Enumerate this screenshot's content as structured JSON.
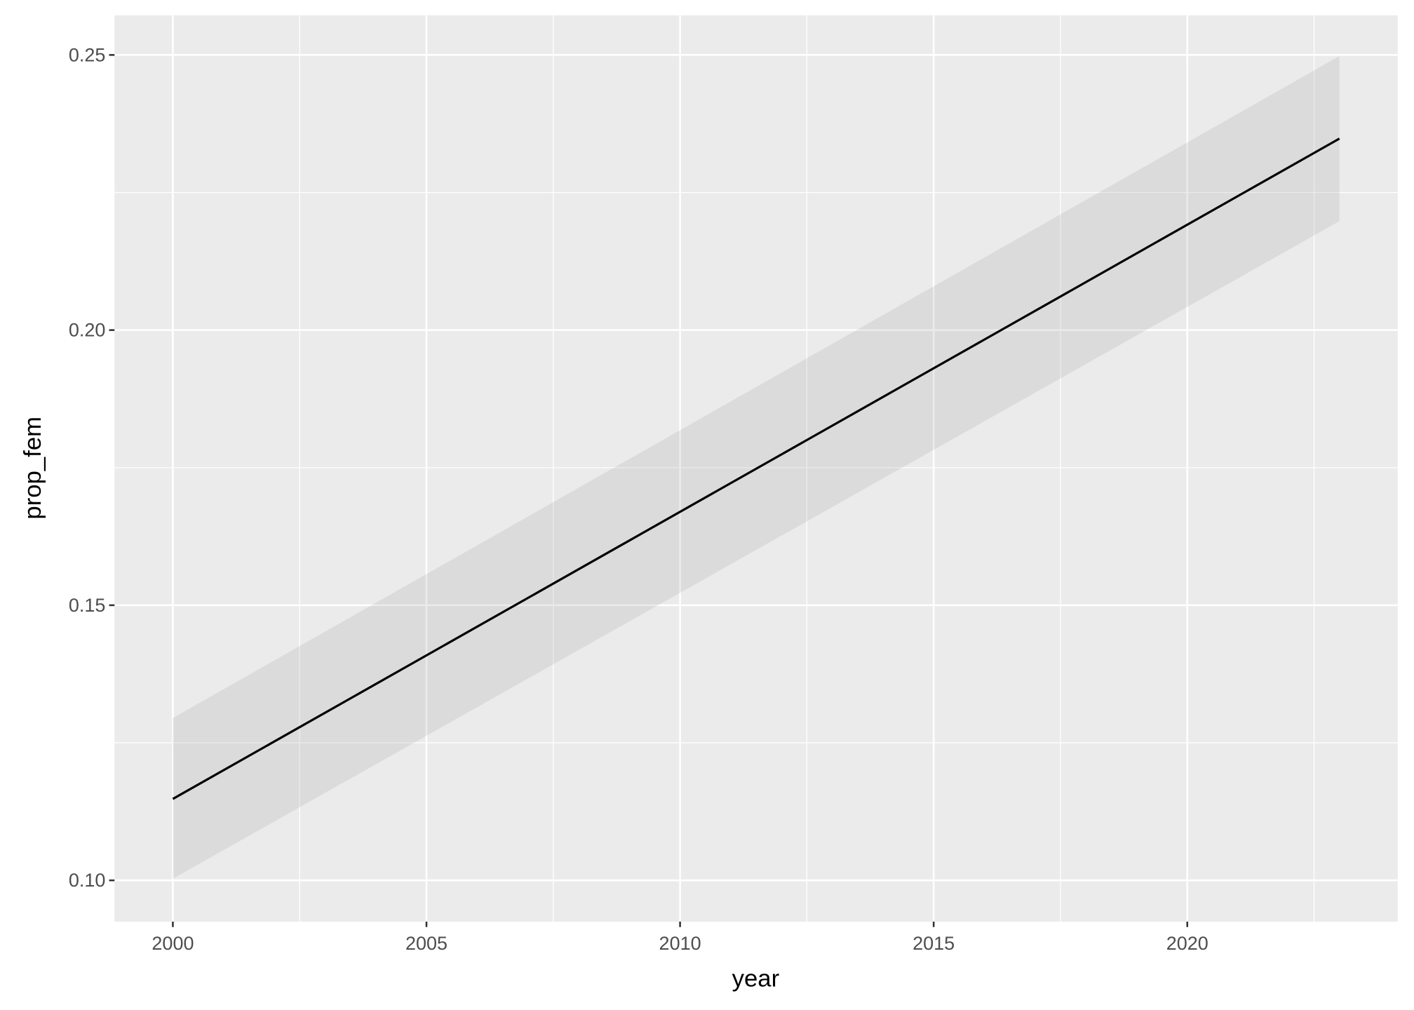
{
  "chart_data": {
    "type": "line",
    "xlabel": "year",
    "ylabel": "prop_fem",
    "xlim": [
      1998.85,
      2024.15
    ],
    "ylim": [
      0.0925,
      0.2572
    ],
    "x_ticks": [
      2000,
      2005,
      2010,
      2015,
      2020
    ],
    "x_tick_labels": [
      "2000",
      "2005",
      "2010",
      "2015",
      "2020"
    ],
    "y_ticks": [
      0.1,
      0.15,
      0.2,
      0.25
    ],
    "y_tick_labels": [
      "0.10",
      "0.15",
      "0.20",
      "0.25"
    ],
    "grid": true,
    "series": [
      {
        "x": [
          2000,
          2023
        ],
        "y": [
          0.1148,
          0.2348
        ],
        "ymin": [
          0.1003,
          0.2198
        ],
        "ymax": [
          0.1295,
          0.2498
        ]
      }
    ],
    "colors": {
      "panel": "#ebebeb",
      "grid": "#ffffff",
      "line": "#000000",
      "ribbon": "#999999"
    }
  }
}
